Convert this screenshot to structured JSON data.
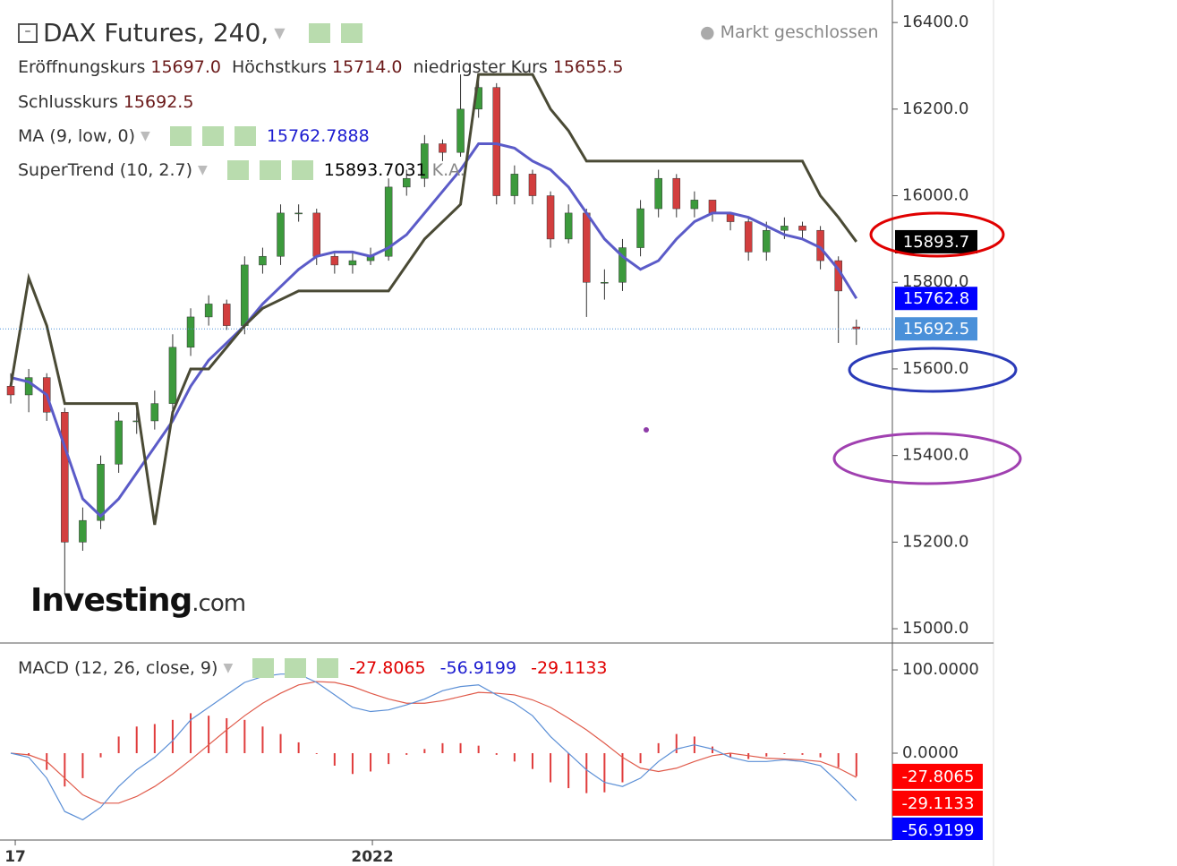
{
  "header": {
    "title": "DAX Futures, 240,",
    "status": "Markt geschlossen",
    "ohlc": [
      {
        "label": "Eröffnungskurs",
        "value": "15697.0"
      },
      {
        "label": "Höchstkurs",
        "value": "15714.0"
      },
      {
        "label": "niedrigster Kurs",
        "value": "15655.5"
      },
      {
        "label": "Schlusskurs",
        "value": "15692.5"
      }
    ],
    "indicators": [
      {
        "label": "MA (9, low, 0)",
        "value": "15762.7888",
        "color": "#1c1cd0"
      },
      {
        "label": "SuperTrend (10, 2.7)",
        "value": "15893.7031",
        "extra": "K.A."
      }
    ],
    "macd_label": "MACD (12, 26, close, 9)"
  },
  "logo": {
    "brand": "Investing",
    "suffix": ".com"
  },
  "chart_data": [
    {
      "type": "candlestick",
      "up_color": "#3c9a3c",
      "down_color": "#d23e3e",
      "open": [
        15560,
        15540,
        15580,
        15500,
        15200,
        15250,
        15380,
        15480,
        15480,
        15520,
        15650,
        15720,
        15750,
        15700,
        15840,
        15860,
        15960,
        15960,
        15860,
        15840,
        15850,
        15860,
        16020,
        16040,
        16120,
        16100,
        16200,
        16250,
        16000,
        16050,
        16000,
        15900,
        15960,
        15800,
        15800,
        15880,
        15970,
        16040,
        15970,
        15990,
        15960,
        15940,
        15870,
        15920,
        15930,
        15920,
        15850,
        15697
      ],
      "high": [
        15590,
        15600,
        15590,
        15510,
        15280,
        15400,
        15500,
        15510,
        15550,
        15680,
        15740,
        15770,
        15760,
        15860,
        15880,
        15980,
        15980,
        15970,
        15870,
        15870,
        15880,
        16040,
        16060,
        16140,
        16130,
        16280,
        16280,
        16260,
        16070,
        16060,
        16010,
        15980,
        15970,
        15830,
        15900,
        15990,
        16060,
        16050,
        16010,
        15990,
        15960,
        15950,
        15940,
        15950,
        15940,
        15930,
        15860,
        15714
      ],
      "low": [
        15520,
        15500,
        15480,
        15080,
        15180,
        15230,
        15360,
        15450,
        15460,
        15500,
        15630,
        15700,
        15690,
        15680,
        15820,
        15840,
        15940,
        15840,
        15820,
        15820,
        15840,
        15850,
        16000,
        16020,
        16080,
        16090,
        16180,
        15980,
        15980,
        15980,
        15880,
        15890,
        15720,
        15760,
        15780,
        15860,
        15950,
        15950,
        15950,
        15940,
        15920,
        15850,
        15850,
        15900,
        15900,
        15830,
        15660,
        15655.5
      ],
      "close": [
        15540,
        15580,
        15500,
        15200,
        15250,
        15380,
        15480,
        15480,
        15520,
        15650,
        15720,
        15750,
        15700,
        15840,
        15860,
        15960,
        15960,
        15860,
        15840,
        15850,
        15860,
        16020,
        16040,
        16120,
        16100,
        16200,
        16250,
        16000,
        16050,
        16000,
        15900,
        15960,
        15800,
        15800,
        15880,
        15970,
        16040,
        15970,
        15990,
        15960,
        15940,
        15870,
        15920,
        15930,
        15920,
        15850,
        15780,
        15692.5
      ],
      "overlays": [
        {
          "color": "#5b5bc8",
          "values": [
            15580,
            15570,
            15540,
            15420,
            15300,
            15260,
            15300,
            15360,
            15420,
            15480,
            15560,
            15620,
            15660,
            15700,
            15750,
            15790,
            15830,
            15860,
            15870,
            15870,
            15860,
            15880,
            15910,
            15960,
            16010,
            16060,
            16120,
            16120,
            16110,
            16080,
            16060,
            16020,
            15960,
            15900,
            15860,
            15830,
            15850,
            15900,
            15940,
            15960,
            15960,
            15950,
            15930,
            15910,
            15900,
            15880,
            15830,
            15762.79
          ]
        },
        {
          "color": "#4a4a35",
          "values": [
            15560,
            15810,
            15700,
            15520,
            15520,
            15520,
            15520,
            15520,
            15240,
            15500,
            15600,
            15600,
            15650,
            15700,
            15740,
            15760,
            15780,
            15780,
            15780,
            15780,
            15780,
            15780,
            15840,
            15900,
            15940,
            15980,
            16280,
            16280,
            16280,
            16280,
            16200,
            16150,
            16080,
            16080,
            16080,
            16080,
            16080,
            16080,
            16080,
            16080,
            16080,
            16080,
            16080,
            16080,
            16080,
            16000,
            15950,
            15893.7
          ]
        }
      ],
      "price_tags": [
        {
          "value": 15893.7,
          "color": "#000000"
        },
        {
          "value": 15762.8,
          "color": "#0000ff"
        },
        {
          "value": 15692.5,
          "color": "#4a90d9"
        }
      ],
      "xlim": [
        -0.1,
        49
      ],
      "ylim": [
        14967,
        16452
      ],
      "yticks": [
        {
          "value": 15000,
          "label": "15000.0"
        },
        {
          "value": 15200,
          "label": "15200.0"
        },
        {
          "value": 15400,
          "label": "15400.0"
        },
        {
          "value": 15600,
          "label": "15600.0"
        },
        {
          "value": 15800,
          "label": "15800.0"
        },
        {
          "value": 16000,
          "label": "16000.0"
        },
        {
          "value": 16200,
          "label": "16200.0"
        },
        {
          "value": 16400,
          "label": "16400.0"
        }
      ]
    },
    {
      "type": "macd",
      "macd": {
        "color": "#5b8fd6",
        "values": [
          0,
          -5,
          -30,
          -70,
          -80,
          -65,
          -40,
          -20,
          -5,
          15,
          40,
          55,
          70,
          85,
          92,
          95,
          95,
          85,
          70,
          55,
          50,
          52,
          58,
          65,
          75,
          80,
          82,
          70,
          60,
          45,
          20,
          0,
          -20,
          -35,
          -40,
          -30,
          -10,
          5,
          10,
          5,
          -5,
          -10,
          -10,
          -8,
          -10,
          -15,
          -35,
          -56.92
        ]
      },
      "signal": {
        "color": "#e05a4a",
        "values": [
          0,
          -2,
          -10,
          -30,
          -50,
          -60,
          -60,
          -52,
          -40,
          -25,
          -8,
          10,
          28,
          45,
          60,
          72,
          82,
          86,
          85,
          80,
          72,
          65,
          60,
          60,
          63,
          68,
          73,
          72,
          70,
          64,
          55,
          42,
          28,
          12,
          -5,
          -18,
          -22,
          -18,
          -10,
          -3,
          0,
          -3,
          -6,
          -7,
          -8,
          -10,
          -18,
          -29.11
        ]
      },
      "histogram": {
        "color": "#e03c3c",
        "values": [
          0,
          -3,
          -20,
          -40,
          -30,
          -5,
          20,
          32,
          35,
          40,
          48,
          45,
          42,
          40,
          32,
          23,
          13,
          -1,
          -15,
          -25,
          -22,
          -13,
          -2,
          5,
          12,
          12,
          9,
          -2,
          -10,
          -19,
          -35,
          -42,
          -48,
          -47,
          -35,
          -12,
          12,
          23,
          20,
          8,
          -5,
          -7,
          -4,
          -1,
          -2,
          -5,
          -17,
          -27.81
        ]
      },
      "legend_values": [
        {
          "value": -27.8065,
          "color": "#e00000"
        },
        {
          "value": -56.9199,
          "color": "#1c1cd0"
        },
        {
          "value": -29.1133,
          "color": "#e00000"
        }
      ],
      "value_tags": [
        {
          "value": -27.8065,
          "color": "#ff0000"
        },
        {
          "value": -29.1133,
          "color": "#ff0000"
        },
        {
          "value": -56.9199,
          "color": "#0000ff"
        }
      ],
      "xlim": [
        -0.1,
        49
      ],
      "ylim": [
        -104.3,
        132.3
      ],
      "xticks": [
        {
          "value": 0.25,
          "label": "17"
        },
        {
          "value": 20.1,
          "label": "2022"
        }
      ],
      "yticks": [
        {
          "value": 0,
          "label": "0.0000"
        },
        {
          "value": 100,
          "label": "100.0000"
        }
      ]
    }
  ]
}
